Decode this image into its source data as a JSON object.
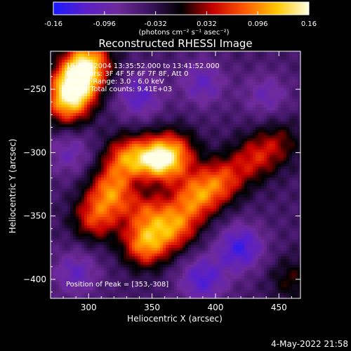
{
  "chart_data": {
    "type": "heatmap",
    "title": "Reconstructed RHESSI Image",
    "xlabel": "Heliocentric X (arcsec)",
    "ylabel": "Heliocentric Y (arcsec)",
    "xlim": [
      270,
      467
    ],
    "ylim": [
      -415,
      -220
    ],
    "x_ticks": [
      300,
      350,
      400,
      450
    ],
    "y_ticks": [
      -250,
      -300,
      -350,
      -400
    ],
    "colorbar": {
      "min": -0.16,
      "max": 0.16,
      "ticks": [
        -0.16,
        -0.096,
        -0.032,
        0.032,
        0.096,
        0.16
      ],
      "tick_labels": [
        "-0.16",
        "-0.096",
        "-0.032",
        "0.032",
        "0.096",
        "0.16"
      ],
      "label": "(photons cm⁻² s⁻¹ asec⁻²)",
      "colormap": [
        "#1a1aff",
        "#5a1ec8",
        "#6e2a9a",
        "#3c1460",
        "#000000",
        "#c80000",
        "#ff5a00",
        "#ffc800",
        "#ffffe6"
      ]
    },
    "annotations": [
      "16-Aug-2004 13:35:52.000 to 13:41:52.000",
      "Detectors: 3F 4F 5F 6F 7F 8F, Att 0",
      "Energy Range: 3.0 - 6.0 keV",
      "Clean: Total counts: 9.41E+03"
    ],
    "peak_label": "Position of Peak = [353,-308]",
    "peak": [
      353,
      -308
    ],
    "sources": [
      {
        "x": 290,
        "y": -245,
        "amp": 0.17
      },
      {
        "x": 300,
        "y": -228,
        "amp": 0.14
      },
      {
        "x": 283,
        "y": -262,
        "amp": 0.12
      },
      {
        "x": 330,
        "y": -305,
        "amp": 0.12
      },
      {
        "x": 353,
        "y": -308,
        "amp": 0.17
      },
      {
        "x": 368,
        "y": -300,
        "amp": 0.1
      },
      {
        "x": 318,
        "y": -330,
        "amp": 0.12
      },
      {
        "x": 345,
        "y": -342,
        "amp": 0.1
      },
      {
        "x": 305,
        "y": -352,
        "amp": 0.1
      },
      {
        "x": 385,
        "y": -335,
        "amp": 0.12
      },
      {
        "x": 405,
        "y": -322,
        "amp": 0.1
      },
      {
        "x": 368,
        "y": -358,
        "amp": 0.12
      },
      {
        "x": 345,
        "y": -372,
        "amp": 0.14
      },
      {
        "x": 430,
        "y": -305,
        "amp": 0.08
      },
      {
        "x": 450,
        "y": -292,
        "amp": 0.06
      },
      {
        "x": 460,
        "y": -400,
        "amp": 0.05
      }
    ],
    "background": [
      {
        "x": 340,
        "y": -255,
        "amp": -0.07
      },
      {
        "x": 390,
        "y": -245,
        "amp": -0.06
      },
      {
        "x": 440,
        "y": -255,
        "amp": -0.05
      },
      {
        "x": 420,
        "y": -375,
        "amp": -0.09
      },
      {
        "x": 390,
        "y": -400,
        "amp": -0.08
      },
      {
        "x": 290,
        "y": -395,
        "amp": -0.06
      },
      {
        "x": 285,
        "y": -300,
        "amp": -0.05
      },
      {
        "x": 345,
        "y": -325,
        "amp": -0.07
      }
    ]
  },
  "footer": {
    "date": "4-May-2022 21:58"
  }
}
